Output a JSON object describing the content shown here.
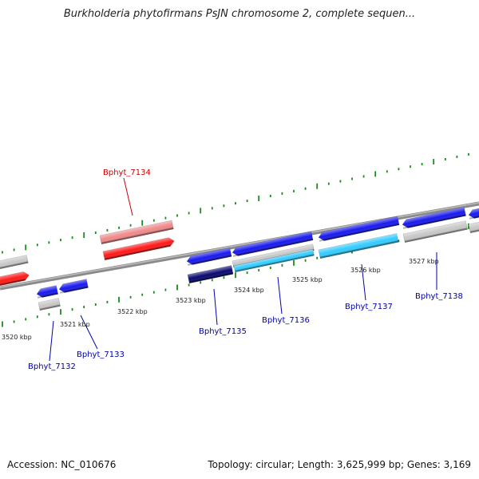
{
  "title": "Burkholderia phytofirmans PsJN chromosome 2, complete sequen...",
  "footer": {
    "accession": "Accession: NC_010676",
    "stats": "Topology: circular; Length: 3,625,999 bp; Genes: 3,169"
  },
  "colors": {
    "red": "#ff1a1a",
    "pink": "#f08a8a",
    "blue": "#1a1aee",
    "navy": "#0a0a70",
    "cyan": "#33ccff",
    "gray": "#c8c8c8",
    "backbone": "#8a8a8a",
    "tick": "#1a8a1a",
    "label_red": "#cc0000",
    "label_blue": "#0000aa"
  },
  "ruler": [
    {
      "label": "3520 kbp"
    },
    {
      "label": "3521 kbp"
    },
    {
      "label": "3522 kbp"
    },
    {
      "label": "3523 kbp"
    },
    {
      "label": "3524 kbp"
    },
    {
      "label": "3525 kbp"
    },
    {
      "label": "3526 kbp"
    },
    {
      "label": "3527 kbp"
    }
  ],
  "gene_labels": [
    {
      "id": "Bphyt_7134",
      "color": "label_red"
    },
    {
      "id": "Bphyt_7132",
      "color": "label_blue"
    },
    {
      "id": "Bphyt_7133",
      "color": "label_blue"
    },
    {
      "id": "Bphyt_7135",
      "color": "label_blue"
    },
    {
      "id": "Bphyt_7136",
      "color": "label_blue"
    },
    {
      "id": "Bphyt_7137",
      "color": "label_blue"
    },
    {
      "id": "Bphyt_7138",
      "color": "label_blue"
    }
  ]
}
